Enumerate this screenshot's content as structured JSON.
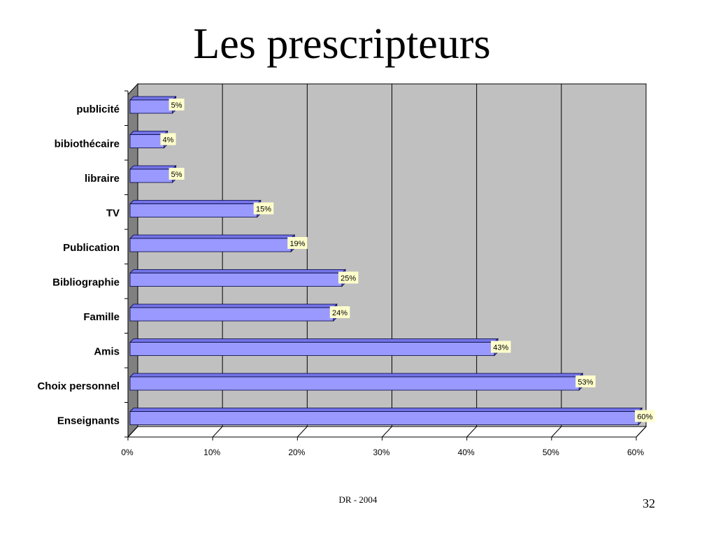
{
  "slide": {
    "title": "Les prescripteurs",
    "footer": "DR - 2004",
    "page_number": "32"
  },
  "chart_data": {
    "type": "bar",
    "orientation": "horizontal",
    "style": "3d",
    "categories": [
      "publicité",
      "bibiothécaire",
      "libraire",
      "TV",
      "Publication",
      "Bibliographie",
      "Famille",
      "Amis",
      "Choix personnel",
      "Enseignants"
    ],
    "values": [
      5,
      4,
      5,
      15,
      19,
      25,
      24,
      43,
      53,
      60
    ],
    "data_labels": [
      "5%",
      "4%",
      "5%",
      "15%",
      "19%",
      "25%",
      "24%",
      "43%",
      "53%",
      "60%"
    ],
    "x_ticks": [
      "0%",
      "10%",
      "20%",
      "30%",
      "40%",
      "50%",
      "60%"
    ],
    "xlim": [
      0,
      60
    ],
    "grid": true,
    "legend": "none",
    "colors": {
      "bar_front": "#9999ff",
      "bar_top": "#7373e6",
      "bar_side": "#5c5cb8",
      "bar_outline": "#000040",
      "back_wall": "#c0c0c0",
      "side_wall": "#808080",
      "floor": "#ffffff",
      "data_label_bg": "#ffffcc"
    }
  }
}
